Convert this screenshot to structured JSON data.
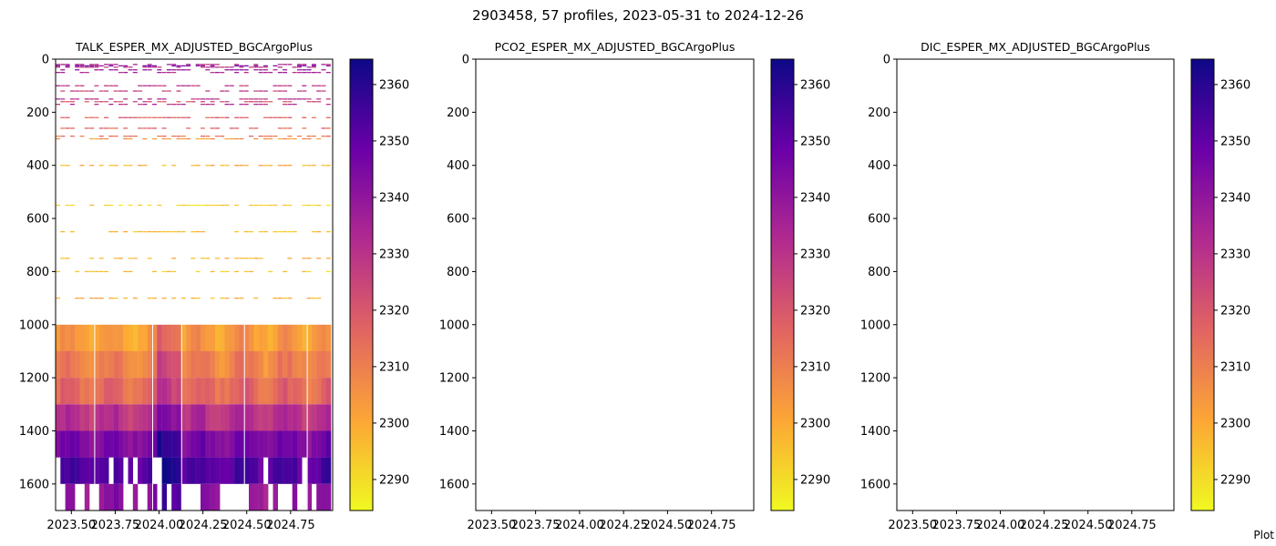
{
  "figure": {
    "title": "2903458, 57 profiles, 2023-05-31 to 2024-12-26",
    "footnote": "Plot"
  },
  "colorbar": {
    "colormap": "plasma (reversed)",
    "range": [
      2284.5,
      2364.5
    ],
    "ticks": [
      2290,
      2300,
      2310,
      2320,
      2330,
      2340,
      2350,
      2360
    ],
    "colors": [
      "#f0f921",
      "#fca636",
      "#e16462",
      "#b12a90",
      "#6a00a8",
      "#0d0887"
    ]
  },
  "chart_data": [
    {
      "type": "heatmap",
      "title": "TALK_ESPER_MX_ADJUSTED_BGCArgoPlus",
      "xlabel": "",
      "ylabel": "",
      "xlim": [
        2023.41,
        2024.99
      ],
      "ylim": [
        1700,
        0
      ],
      "x_ticks": [
        "2023.50",
        "2023.75",
        "2024.00",
        "2024.25",
        "2024.50",
        "2024.75"
      ],
      "x_tick_values": [
        2023.5,
        2023.75,
        2024.0,
        2024.25,
        2024.5,
        2024.75
      ],
      "y_ticks": [
        0,
        200,
        400,
        600,
        800,
        1000,
        1200,
        1400,
        1600
      ],
      "profile_x_range": [
        2023.41,
        2024.98
      ],
      "profile_count": 57,
      "sparse_layers_m": [
        {
          "depth": 20,
          "value": 2332
        },
        {
          "depth": 25,
          "value": 2343
        },
        {
          "depth": 30,
          "value": 2330
        },
        {
          "depth": 40,
          "value": 2338
        },
        {
          "depth": 50,
          "value": 2334
        },
        {
          "depth": 100,
          "value": 2330
        },
        {
          "depth": 120,
          "value": 2326
        },
        {
          "depth": 150,
          "value": 2330
        },
        {
          "depth": 160,
          "value": 2322
        },
        {
          "depth": 170,
          "value": 2331
        },
        {
          "depth": 220,
          "value": 2318
        },
        {
          "depth": 260,
          "value": 2316
        },
        {
          "depth": 290,
          "value": 2312
        },
        {
          "depth": 300,
          "value": 2305
        },
        {
          "depth": 400,
          "value": 2299
        },
        {
          "depth": 550,
          "value": 2292
        },
        {
          "depth": 650,
          "value": 2296
        },
        {
          "depth": 750,
          "value": 2298
        },
        {
          "depth": 800,
          "value": 2294
        },
        {
          "depth": 900,
          "value": 2298
        }
      ],
      "dense_layers_m": [
        {
          "depth_top": 1000,
          "depth_bottom": 1100,
          "value": 2303
        },
        {
          "depth_top": 1100,
          "depth_bottom": 1200,
          "value": 2309
        },
        {
          "depth_top": 1200,
          "depth_bottom": 1300,
          "value": 2315
        },
        {
          "depth_top": 1300,
          "depth_bottom": 1400,
          "value": 2330
        },
        {
          "depth_top": 1400,
          "depth_bottom": 1500,
          "value": 2345
        },
        {
          "depth_top": 1500,
          "depth_bottom": 1600,
          "value": 2352
        },
        {
          "depth_top": 1600,
          "depth_bottom": 1700,
          "value": 2340
        }
      ]
    },
    {
      "type": "heatmap",
      "title": "PCO2_ESPER_MX_ADJUSTED_BGCArgoPlus",
      "xlabel": "",
      "ylabel": "",
      "xlim": [
        2023.41,
        2024.99
      ],
      "ylim": [
        1700,
        0
      ],
      "x_ticks": [
        "2023.50",
        "2023.75",
        "2024.00",
        "2024.25",
        "2024.50",
        "2024.75"
      ],
      "x_tick_values": [
        2023.5,
        2023.75,
        2024.0,
        2024.25,
        2024.5,
        2024.75
      ],
      "y_ticks": [
        0,
        200,
        400,
        600,
        800,
        1000,
        1200,
        1400,
        1600
      ],
      "values": []
    },
    {
      "type": "heatmap",
      "title": "DIC_ESPER_MX_ADJUSTED_BGCArgoPlus",
      "xlabel": "",
      "ylabel": "",
      "xlim": [
        2023.41,
        2024.99
      ],
      "ylim": [
        1700,
        0
      ],
      "x_ticks": [
        "2023.50",
        "2023.75",
        "2024.00",
        "2024.25",
        "2024.50",
        "2024.75"
      ],
      "x_tick_values": [
        2023.5,
        2023.75,
        2024.0,
        2024.25,
        2024.5,
        2024.75
      ],
      "y_ticks": [
        0,
        200,
        400,
        600,
        800,
        1000,
        1200,
        1400,
        1600
      ],
      "values": []
    }
  ]
}
